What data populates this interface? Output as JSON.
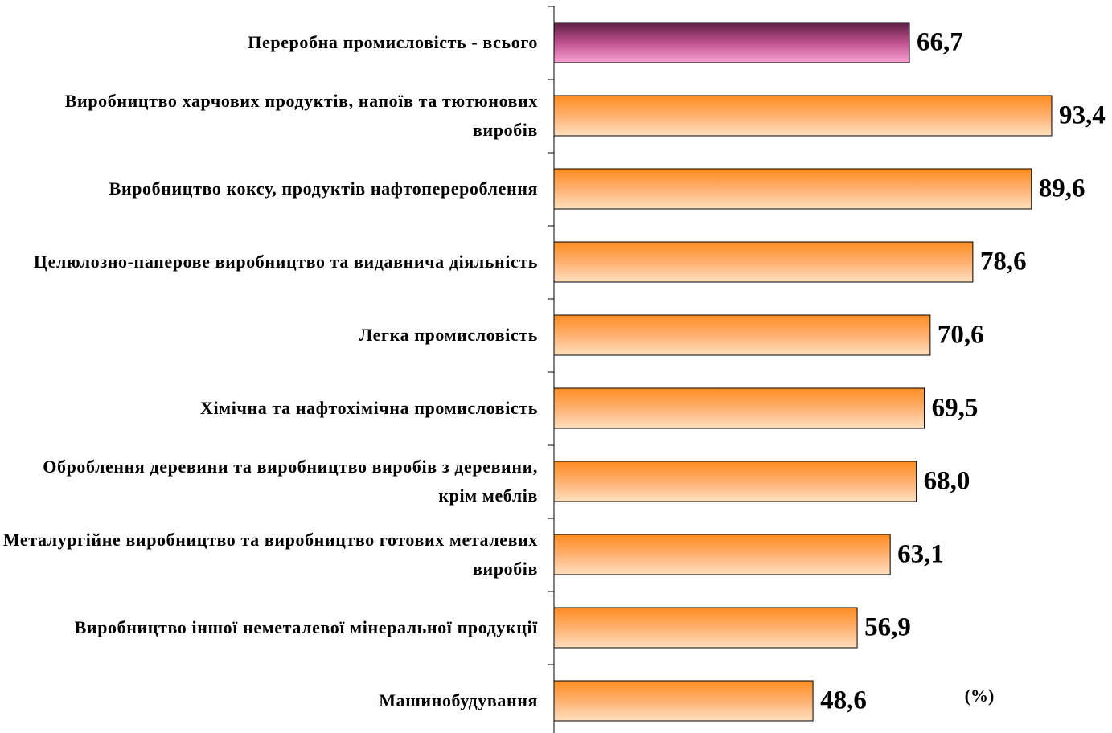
{
  "chart_data": {
    "type": "bar",
    "orientation": "horizontal",
    "categories": [
      "Переробна промисловість - всього",
      "Виробництво харчових продуктів, напоїв та тютюнових виробів",
      "Виробництво коксу, продуктів нафтоперероблення",
      "Целюлозно-паперове виробництво та видавнича діяльність",
      "Легка промисловість",
      "Хімічна та нафтохімічна промисловість",
      "Оброблення деревини та виробництво виробів з деревини, крім меблів",
      "Металургійне виробництво та виробництво готових металевих виробів",
      "Виробництво іншої неметалевої мінеральної продукції",
      "Машинобудування"
    ],
    "values": [
      66.7,
      93.4,
      89.6,
      78.6,
      70.6,
      69.5,
      68.0,
      63.1,
      56.9,
      48.6
    ],
    "value_labels": [
      "66,7",
      "93,4",
      "89,6",
      "78,6",
      "70,6",
      "69,5",
      "68,0",
      "63,1",
      "56,9",
      "48,6"
    ],
    "colors": [
      "#e070b0",
      "#ff9a3c",
      "#ff9a3c",
      "#ff9a3c",
      "#ff9a3c",
      "#ff9a3c",
      "#ff9a3c",
      "#ff9a3c",
      "#ff9a3c",
      "#ff9a3c"
    ],
    "unit_label": "(%)"
  }
}
